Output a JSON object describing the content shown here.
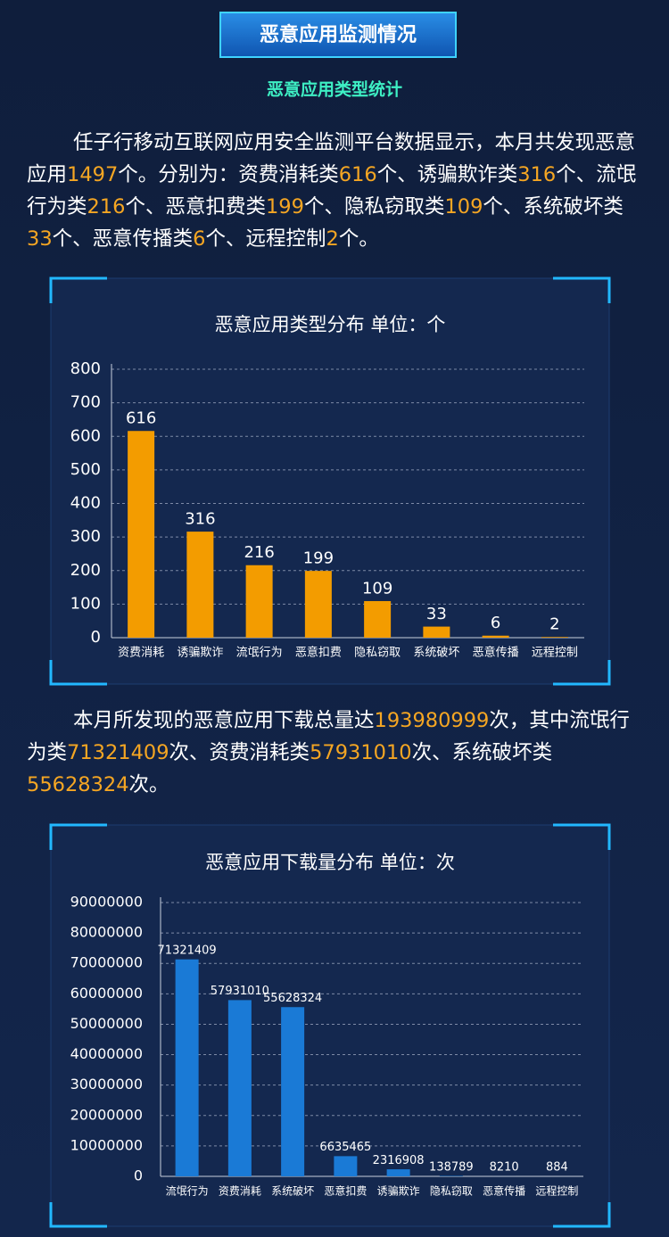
{
  "header": {
    "title": "恶意应用监测情况",
    "subtitle": "恶意应用类型统计"
  },
  "paragraphs": [
    [
      "任子行移动互联网应用安全监测平台数据显示，本月共发现恶意应用",
      1497,
      "个。分别为：资费消耗类",
      616,
      "个、诱骗欺诈类",
      316,
      "个、流氓行为类",
      216,
      "个、恶意扣费类",
      199,
      "个、隐私窃取类",
      109,
      "个、系统破坏类",
      33,
      "个、恶意传播类",
      6,
      "个、远程控制",
      2,
      "个。"
    ],
    [
      "本月所发现的恶意应用下载总量达",
      193980999,
      "次，其中流氓行为类",
      71321409,
      "次、资费消耗类",
      57931010,
      "次、系统破坏类",
      55628324,
      "次。"
    ]
  ],
  "chart_data": [
    {
      "type": "bar",
      "title": "恶意应用类型分布   单位：个",
      "categories": [
        "资费消耗",
        "诱骗欺诈",
        "流氓行为",
        "恶意扣费",
        "隐私窃取",
        "系统破坏",
        "恶意传播",
        "远程控制"
      ],
      "values": [
        616,
        316,
        216,
        199,
        109,
        33,
        6,
        2
      ],
      "color": "#f39c00",
      "ylim": [
        0,
        800
      ],
      "yticks": [
        0,
        100,
        200,
        300,
        400,
        500,
        600,
        700,
        800
      ],
      "grid": true
    },
    {
      "type": "bar",
      "title": "恶意应用下载量分布   单位：次",
      "categories": [
        "流氓行为",
        "资费消耗",
        "系统破坏",
        "恶意扣费",
        "诱骗欺诈",
        "隐私窃取",
        "恶意传播",
        "远程控制"
      ],
      "values": [
        71321409,
        57931010,
        55628324,
        6635465,
        2316908,
        138789,
        8210,
        884
      ],
      "color": "#1a7ad6",
      "ylim": [
        0,
        90000000
      ],
      "yticks": [
        0,
        10000000,
        20000000,
        30000000,
        40000000,
        50000000,
        60000000,
        70000000,
        80000000,
        90000000
      ],
      "grid": true
    }
  ]
}
